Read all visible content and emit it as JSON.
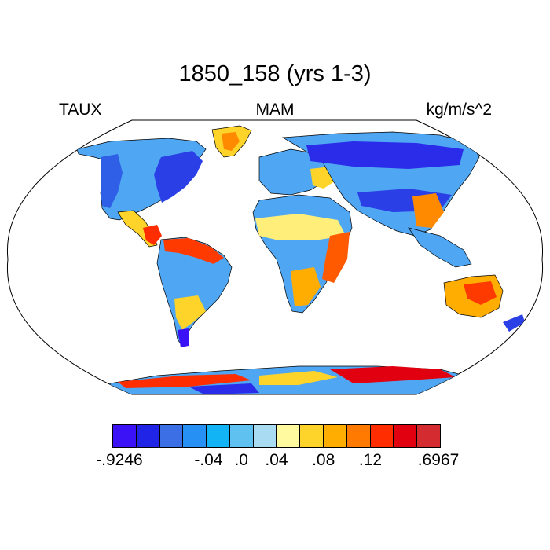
{
  "title": "1850_158 (yrs 1-3)",
  "labels": {
    "left": "TAUX",
    "center": "MAM",
    "right": "kg/m/s^2"
  },
  "colorbar": {
    "colors": [
      "#3a12f5",
      "#1f24e6",
      "#3c6ee6",
      "#2690f5",
      "#12b4f6",
      "#5ec1ef",
      "#a9dcf3",
      "#fffaa0",
      "#ffd42a",
      "#ffad00",
      "#ff7a00",
      "#ff2d00",
      "#e00010",
      "#d42b30"
    ],
    "tick_labels": [
      "-.9246",
      "-.04",
      ".0",
      ".04",
      ".08",
      ".12",
      ".6967"
    ]
  },
  "legend_colors": {
    "ocean": "#ffffff",
    "coast": "#000000"
  }
}
